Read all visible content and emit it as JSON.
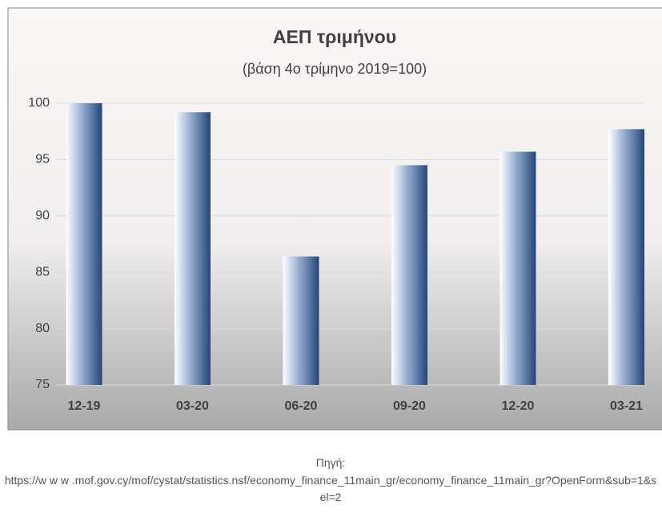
{
  "chart_data": {
    "type": "bar",
    "title": "ΑΕΠ τριμήνου",
    "subtitle": "(βάση 4ο τρίμηνο 2019=100)",
    "categories": [
      "12-19",
      "03-20",
      "06-20",
      "09-20",
      "12-20",
      "03-21"
    ],
    "values": [
      100,
      99.2,
      86.4,
      94.5,
      95.7,
      97.7
    ],
    "color": "#24467a",
    "ylim": [
      75,
      100
    ],
    "yticks": [
      75,
      80,
      85,
      90,
      95,
      100
    ],
    "grid": true
  },
  "source_label": "Πηγή:",
  "source": "https://w w w .mof.gov.cy/mof/cystat/statistics.nsf/economy_finance_11main_gr/economy_finance_11main_gr?OpenForm&sub=1&sel=2"
}
